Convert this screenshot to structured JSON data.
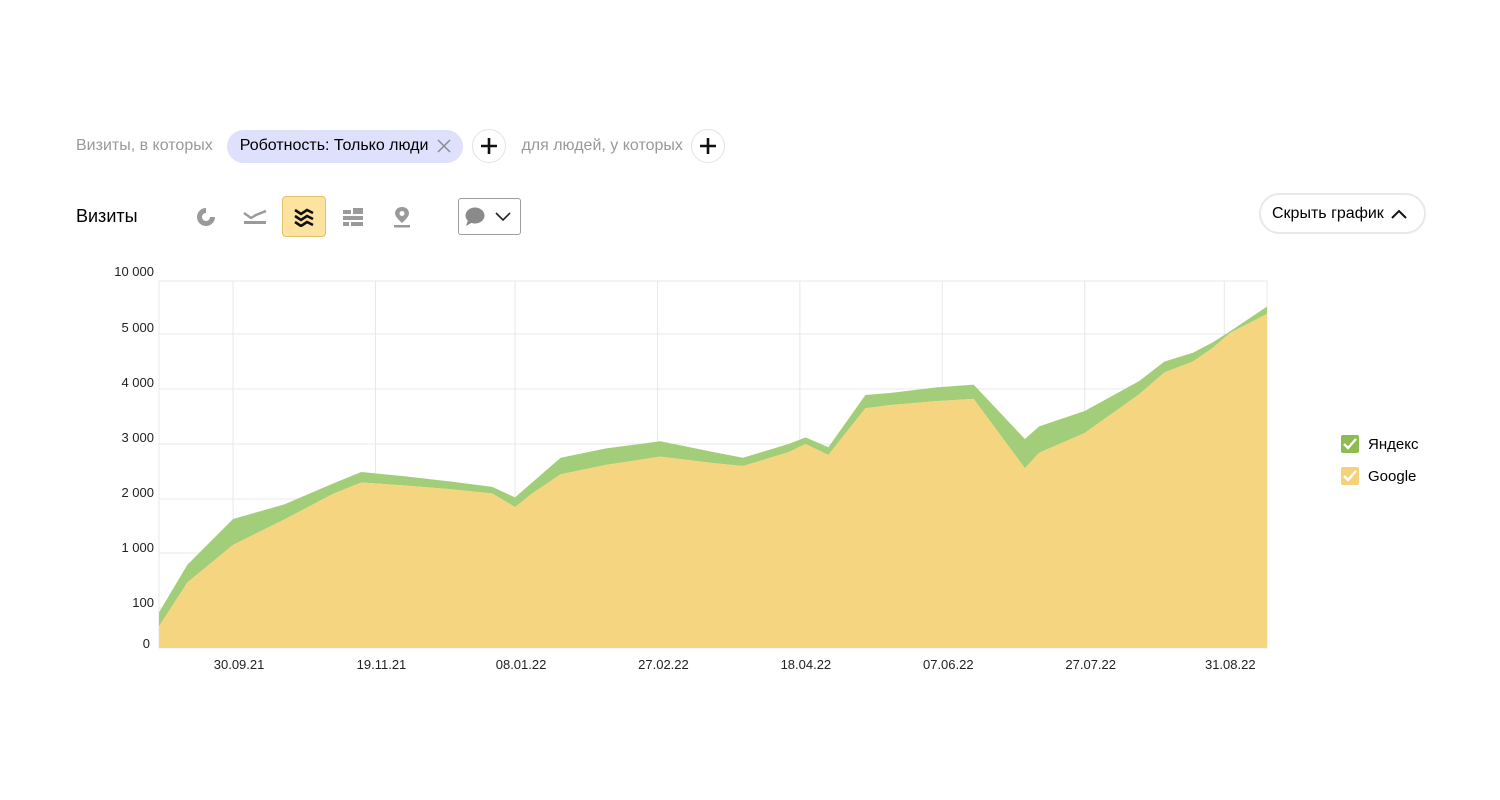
{
  "filters": {
    "visits_label": "Визиты, в которых",
    "chip_label": "Роботность: Только люди",
    "people_label": "для людей, у которых"
  },
  "toolbar": {
    "title": "Визиты",
    "chart_types": [
      "pie-chart-icon",
      "line-chart-icon",
      "stacked-area-icon",
      "bar-chart-icon",
      "map-pin-icon"
    ],
    "active_chart_type": "stacked-area-icon",
    "annotation_icon": "speech-bubble-icon",
    "hide_chart_label": "Скрыть график"
  },
  "legend": [
    {
      "label": "Яндекс",
      "color": "#8fbc50"
    },
    {
      "label": "Google",
      "color": "#f5d27a"
    }
  ],
  "colors": {
    "yandex": "#a2ce7a",
    "google": "#f5d57f",
    "grid": "#e8e8e8"
  },
  "chart_data": {
    "type": "area",
    "stacked": true,
    "y_axis": {
      "ticks": [
        0,
        100,
        1000,
        2000,
        3000,
        4000,
        5000,
        10000
      ],
      "tick_labels": [
        "0",
        "100",
        "1 000",
        "2 000",
        "3 000",
        "4 000",
        "5 000",
        "10 000"
      ]
    },
    "x_tick_labels": [
      "30.09.21",
      "19.11.21",
      "08.01.22",
      "27.02.22",
      "18.04.22",
      "07.06.22",
      "27.07.22",
      "31.08.22"
    ],
    "x_tick_days": [
      40,
      90,
      139,
      189,
      239,
      289,
      339,
      388
    ],
    "x_days": [
      14,
      24,
      40,
      58,
      75,
      85,
      99,
      116,
      131,
      139,
      145,
      155,
      171,
      190,
      209,
      219,
      235,
      241,
      249,
      262,
      271,
      287,
      300,
      318,
      323,
      339,
      358,
      367,
      377,
      384,
      390,
      403
    ],
    "series": [
      {
        "name": "Google",
        "values": [
          54,
          520,
          1150,
          1620,
          2090,
          2300,
          2250,
          2180,
          2100,
          1850,
          2100,
          2450,
          2620,
          2770,
          2650,
          2600,
          2850,
          3000,
          2800,
          3650,
          3710,
          3780,
          3820,
          2560,
          2840,
          3200,
          3900,
          4300,
          4500,
          4750,
          5100,
          6900
        ]
      },
      {
        "name": "Яндекс",
        "values": [
          35,
          290,
          480,
          280,
          190,
          190,
          170,
          140,
          120,
          180,
          200,
          300,
          300,
          280,
          200,
          150,
          150,
          120,
          140,
          240,
          220,
          250,
          260,
          530,
          480,
          400,
          240,
          200,
          160,
          100,
          150,
          700
        ]
      }
    ]
  }
}
